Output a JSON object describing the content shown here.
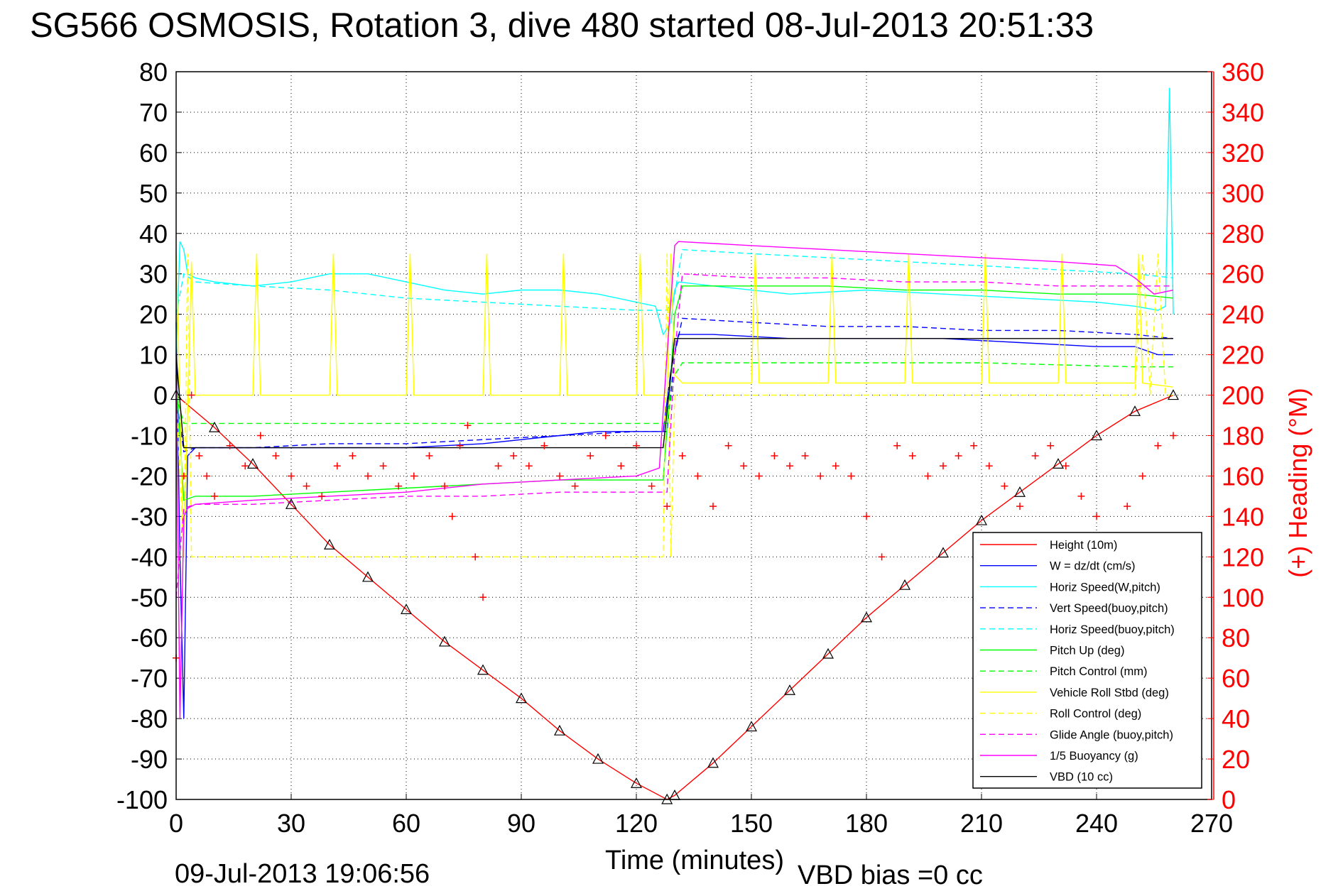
{
  "title": "SG566 OSMOSIS, Rotation 3, dive 480 started 08-Jul-2013 20:51:33",
  "footer": {
    "timestamp": "09-Jul-2013 19:06:56",
    "vbd_bias": "VBD bias =0 cc"
  },
  "chart_data": {
    "type": "line",
    "title": "SG566 OSMOSIS, Rotation 3, dive 480 started 08-Jul-2013 20:51:33",
    "xlabel": "Time (minutes)",
    "ylabel": "",
    "y2label": "(+) Heading (°M)",
    "xlim": [
      0,
      270
    ],
    "ylim": [
      -100,
      80
    ],
    "y2lim": [
      0,
      360
    ],
    "xticks": [
      0,
      30,
      60,
      90,
      120,
      150,
      180,
      210,
      240,
      270
    ],
    "yticks": [
      -100,
      -90,
      -80,
      -70,
      -60,
      -50,
      -40,
      -30,
      -20,
      -10,
      0,
      10,
      20,
      30,
      40,
      50,
      60,
      70,
      80
    ],
    "y2ticks": [
      0,
      20,
      40,
      60,
      80,
      100,
      120,
      140,
      160,
      180,
      200,
      220,
      240,
      260,
      280,
      300,
      320,
      340,
      360
    ],
    "grid": true,
    "legend_position": "bottom-right",
    "colors": {
      "y2_axis": "#ff0000"
    },
    "series": [
      {
        "name": "Height (10m)",
        "color": "#ff0000",
        "style": "solid",
        "x": [
          0,
          10,
          20,
          30,
          40,
          50,
          60,
          70,
          80,
          90,
          100,
          110,
          120,
          128,
          130,
          140,
          150,
          160,
          170,
          180,
          190,
          200,
          210,
          220,
          230,
          240,
          250,
          260
        ],
        "y": [
          0,
          -8,
          -17,
          -27,
          -37,
          -45,
          -53,
          -61,
          -68,
          -75,
          -83,
          -90,
          -96,
          -100,
          -99,
          -91,
          -82,
          -73,
          -64,
          -55,
          -47,
          -39,
          -31,
          -24,
          -17,
          -10,
          -4,
          0
        ]
      },
      {
        "name": "W = dz/dt (cm/s)",
        "color": "#0000ff",
        "style": "solid",
        "x": [
          0,
          1,
          2,
          3,
          5,
          20,
          40,
          60,
          80,
          100,
          110,
          120,
          127,
          129,
          131,
          140,
          160,
          180,
          200,
          220,
          240,
          250,
          256,
          260
        ],
        "y": [
          18,
          -40,
          -80,
          -15,
          -13,
          -13,
          -13,
          -13,
          -12,
          -10,
          -9,
          -9,
          -9,
          6,
          15,
          15,
          14,
          14,
          14,
          13,
          12,
          12,
          10,
          10
        ]
      },
      {
        "name": "Horiz Speed(W,pitch)",
        "color": "#00ffff",
        "style": "solid",
        "x": [
          0,
          1,
          2,
          3,
          5,
          10,
          20,
          30,
          40,
          50,
          60,
          70,
          80,
          90,
          100,
          110,
          120,
          125,
          127,
          129,
          130,
          131,
          140,
          160,
          180,
          200,
          220,
          240,
          250,
          256,
          258,
          259,
          260
        ],
        "y": [
          10,
          38,
          36,
          30,
          29,
          28,
          27,
          28,
          30,
          30,
          28,
          26,
          25,
          26,
          26,
          25,
          23,
          22,
          15,
          18,
          26,
          28,
          27,
          25,
          26,
          25,
          24,
          23,
          22,
          21,
          22,
          76,
          20
        ]
      },
      {
        "name": "Vert Speed(buoy,pitch)",
        "color": "#0000ff",
        "style": "dashed",
        "x": [
          0,
          2,
          5,
          20,
          40,
          60,
          80,
          100,
          120,
          128,
          130,
          132,
          150,
          170,
          190,
          210,
          230,
          250,
          260
        ],
        "y": [
          0,
          -14,
          -13,
          -13,
          -12,
          -12,
          -11,
          -10,
          -9,
          -9,
          10,
          19,
          18,
          17,
          17,
          16,
          16,
          15,
          14
        ]
      },
      {
        "name": "Horiz Speed(buoy,pitch)",
        "color": "#00ffff",
        "style": "dashed",
        "x": [
          0,
          2,
          5,
          20,
          40,
          60,
          80,
          100,
          120,
          128,
          130,
          132,
          150,
          170,
          190,
          210,
          230,
          250,
          260
        ],
        "y": [
          20,
          30,
          28,
          27,
          26,
          24,
          23,
          22,
          21,
          21,
          25,
          36,
          35,
          34,
          33,
          32,
          31,
          30,
          29
        ]
      },
      {
        "name": "Pitch Up (deg)",
        "color": "#00ff00",
        "style": "solid",
        "x": [
          0,
          2,
          5,
          20,
          40,
          60,
          80,
          100,
          120,
          127,
          129,
          130,
          132,
          150,
          170,
          190,
          210,
          230,
          250,
          260
        ],
        "y": [
          5,
          -26,
          -25,
          -25,
          -24,
          -23,
          -22,
          -21,
          -21,
          -21,
          5,
          20,
          27,
          27,
          27,
          26,
          26,
          25,
          25,
          24
        ]
      },
      {
        "name": "Pitch Control (mm)",
        "color": "#00ff00",
        "style": "dashed",
        "x": [
          0,
          2,
          5,
          20,
          60,
          100,
          128,
          130,
          132,
          170,
          210,
          250,
          260
        ],
        "y": [
          0,
          -7,
          -7,
          -7,
          -7,
          -7,
          -7,
          5,
          8,
          8,
          8,
          7,
          7
        ]
      },
      {
        "name": "Vehicle Roll Stbd (deg)",
        "color": "#ffff00",
        "style": "solid",
        "x": [
          0,
          2,
          4,
          5,
          6,
          20,
          21,
          22,
          40,
          41,
          42,
          60,
          61,
          62,
          80,
          81,
          82,
          100,
          101,
          102,
          120,
          121,
          122,
          128,
          129,
          130,
          132,
          135,
          150,
          151,
          152,
          170,
          171,
          172,
          190,
          191,
          192,
          210,
          211,
          212,
          230,
          231,
          232,
          250,
          251,
          252,
          260
        ],
        "y": [
          35,
          -40,
          33,
          0,
          0,
          0,
          35,
          0,
          0,
          35,
          0,
          0,
          35,
          0,
          0,
          35,
          0,
          0,
          35,
          0,
          0,
          35,
          0,
          0,
          35,
          5,
          3,
          3,
          3,
          35,
          3,
          3,
          35,
          3,
          3,
          35,
          3,
          3,
          35,
          3,
          3,
          35,
          3,
          3,
          35,
          3,
          2
        ]
      },
      {
        "name": "Roll Control (deg)",
        "color": "#ffff00",
        "style": "dashed",
        "x": [
          0,
          2,
          3,
          4,
          10,
          30,
          50,
          70,
          90,
          110,
          127,
          128,
          129,
          130,
          150,
          170,
          190,
          210,
          230,
          250,
          252,
          254,
          256,
          258,
          260
        ],
        "y": [
          0,
          -40,
          35,
          -40,
          -40,
          -40,
          -40,
          -40,
          -40,
          -40,
          -40,
          35,
          -40,
          0,
          0,
          0,
          0,
          0,
          0,
          0,
          35,
          0,
          35,
          0,
          0
        ]
      },
      {
        "name": "Glide Angle (buoy,pitch)",
        "color": "#ff00ff",
        "style": "dashed",
        "x": [
          0,
          2,
          5,
          20,
          40,
          60,
          80,
          100,
          120,
          128,
          130,
          132,
          150,
          170,
          190,
          210,
          230,
          250,
          260
        ],
        "y": [
          -50,
          -28,
          -27,
          -27,
          -26,
          -25,
          -25,
          -24,
          -24,
          -24,
          10,
          30,
          29,
          29,
          28,
          28,
          27,
          27,
          27
        ]
      },
      {
        "name": "1/5 Buoyancy (g)",
        "color": "#ff00ff",
        "style": "solid",
        "x": [
          0,
          1,
          2,
          3,
          5,
          20,
          40,
          60,
          80,
          100,
          120,
          126,
          128,
          130,
          131,
          150,
          170,
          190,
          210,
          230,
          245,
          250,
          255,
          260
        ],
        "y": [
          5,
          -80,
          -30,
          -28,
          -27,
          -26,
          -25,
          -24,
          -22,
          -21,
          -20,
          -18,
          10,
          37,
          38,
          37,
          36,
          35,
          34,
          33,
          32,
          29,
          25,
          26
        ]
      },
      {
        "name": "VBD (10 cc)",
        "color": "#000000",
        "style": "solid",
        "x": [
          0,
          2,
          3,
          20,
          40,
          60,
          80,
          100,
          120,
          127,
          129,
          130,
          131,
          150,
          170,
          190,
          210,
          230,
          250,
          260
        ],
        "y": [
          10,
          -13,
          -13,
          -13,
          -13,
          -13,
          -13,
          -13,
          -13,
          -13,
          5,
          14,
          14,
          14,
          14,
          14,
          14,
          14,
          14,
          14
        ]
      },
      {
        "name": "",
        "color": "#ff0000",
        "style": "plus-markers",
        "axis": "right",
        "x": [
          0,
          2,
          4,
          6,
          8,
          10,
          14,
          18,
          22,
          26,
          30,
          34,
          38,
          42,
          46,
          50,
          54,
          58,
          62,
          66,
          70,
          72,
          74,
          76,
          78,
          80,
          84,
          88,
          92,
          96,
          100,
          104,
          108,
          112,
          116,
          120,
          124,
          128,
          132,
          136,
          140,
          144,
          148,
          152,
          156,
          160,
          164,
          168,
          172,
          176,
          180,
          184,
          188,
          192,
          196,
          200,
          204,
          208,
          212,
          216,
          220,
          224,
          228,
          232,
          236,
          240,
          244,
          248,
          252,
          256,
          260
        ],
        "y": [
          70,
          160,
          200,
          170,
          160,
          150,
          175,
          165,
          180,
          170,
          160,
          155,
          150,
          165,
          170,
          160,
          165,
          155,
          160,
          170,
          155,
          140,
          175,
          185,
          120,
          100,
          165,
          170,
          165,
          175,
          160,
          155,
          170,
          180,
          165,
          175,
          155,
          145,
          170,
          160,
          145,
          175,
          165,
          160,
          170,
          165,
          170,
          160,
          165,
          160,
          140,
          120,
          175,
          170,
          160,
          165,
          170,
          175,
          165,
          155,
          145,
          170,
          175,
          165,
          150,
          140,
          130,
          145,
          160,
          175,
          180
        ]
      }
    ]
  }
}
